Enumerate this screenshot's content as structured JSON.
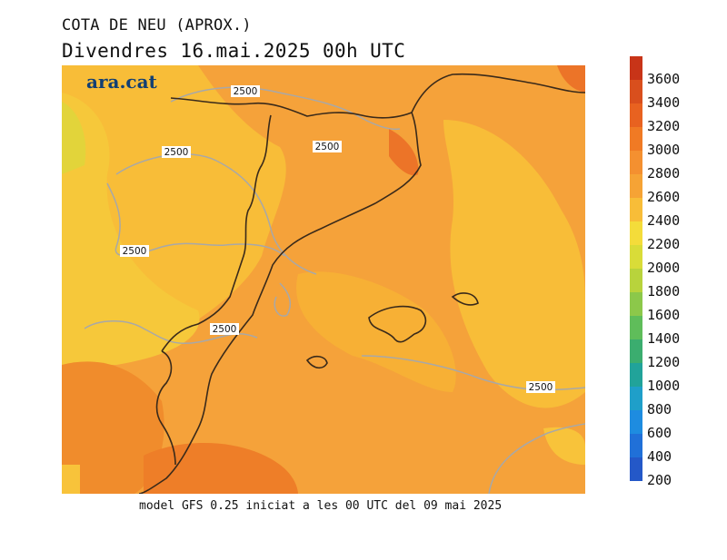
{
  "title": "COTA DE NEU (APROX.)",
  "subtitle": "Divendres  16.mai.2025 00h UTC",
  "footer": "model GFS 0.25 iniciat a les 00 UTC del 09 mai 2025",
  "watermark": "ara.cat",
  "contour_labels": [
    "2500",
    "2500",
    "2500",
    "2500",
    "2500",
    "2500"
  ],
  "colorbar": {
    "ticks": [
      "3600",
      "3400",
      "3200",
      "3000",
      "2800",
      "2600",
      "2400",
      "2200",
      "2000",
      "1800",
      "1600",
      "1400",
      "1200",
      "1000",
      "800",
      "600",
      "400",
      "200"
    ],
    "colors": [
      "#c83418",
      "#d94f1d",
      "#e86220",
      "#f07a24",
      "#f49030",
      "#f6a335",
      "#f8bd38",
      "#f4dc3a",
      "#d9dc38",
      "#b8d33c",
      "#8cc84a",
      "#5fbd5a",
      "#3bad6f",
      "#21a39a",
      "#1f9fc9",
      "#1e8ce0",
      "#2070d8",
      "#2458c8"
    ]
  }
}
